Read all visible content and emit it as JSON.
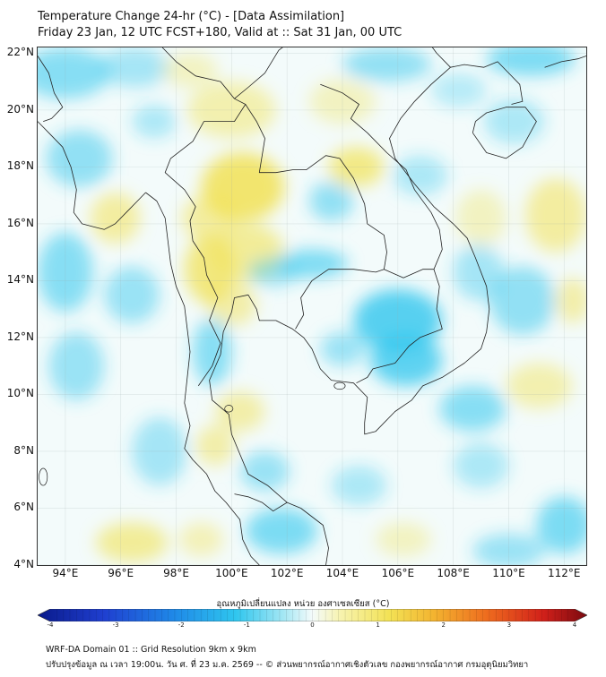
{
  "header": {
    "title": "Temperature Change 24-hr (°C) - [Data Assimilation]",
    "subtitle": "Friday 23 Jan, 12 UTC FCST+180, Valid at :: Sat 31 Jan, 00 UTC"
  },
  "map": {
    "lat_labels": [
      "22°N",
      "20°N",
      "18°N",
      "16°N",
      "14°N",
      "12°N",
      "10°N",
      "8°N",
      "6°N",
      "4°N"
    ],
    "lat_values": [
      22,
      20,
      18,
      16,
      14,
      12,
      10,
      8,
      6,
      4
    ],
    "lon_labels": [
      "94°E",
      "96°E",
      "98°E",
      "100°E",
      "102°E",
      "104°E",
      "106°E",
      "108°E",
      "110°E",
      "112°E"
    ],
    "lon_values": [
      94,
      96,
      98,
      100,
      102,
      104,
      106,
      108,
      110,
      112
    ],
    "lat_range": [
      4,
      22.2
    ],
    "lon_range": [
      93,
      112.8
    ],
    "grid": true,
    "colors": {
      "warm": "#f2e255",
      "cool": "#2fc6ee",
      "neutral": "#f3fbfb",
      "border": "#222222"
    }
  },
  "colorbar": {
    "title": "อุณหภูมิเปลี่ยนแปลง หน่วย องศาเซลเซียส (°C)",
    "range": [
      -4,
      4
    ],
    "ticks": [
      "-4",
      "-3",
      "-2",
      "-1",
      "0",
      "1",
      "2",
      "3",
      "4"
    ],
    "tick_values": [
      -4,
      -3,
      -2,
      -1,
      0,
      1,
      2,
      3,
      4
    ],
    "extend": "both"
  },
  "footer": {
    "line1": "WRF-DA Domain 01 :: Grid Resolution 9km x 9km",
    "line2": "ปรับปรุงข้อมูล ณ เวลา 19:00น. วัน ศ. ที่ 23 ม.ค. 2569 -- © ส่วนพยากรณ์อากาศเชิงตัวเลข กองพยากรณ์อากาศ กรมอุตุนิยมวิทยา"
  }
}
